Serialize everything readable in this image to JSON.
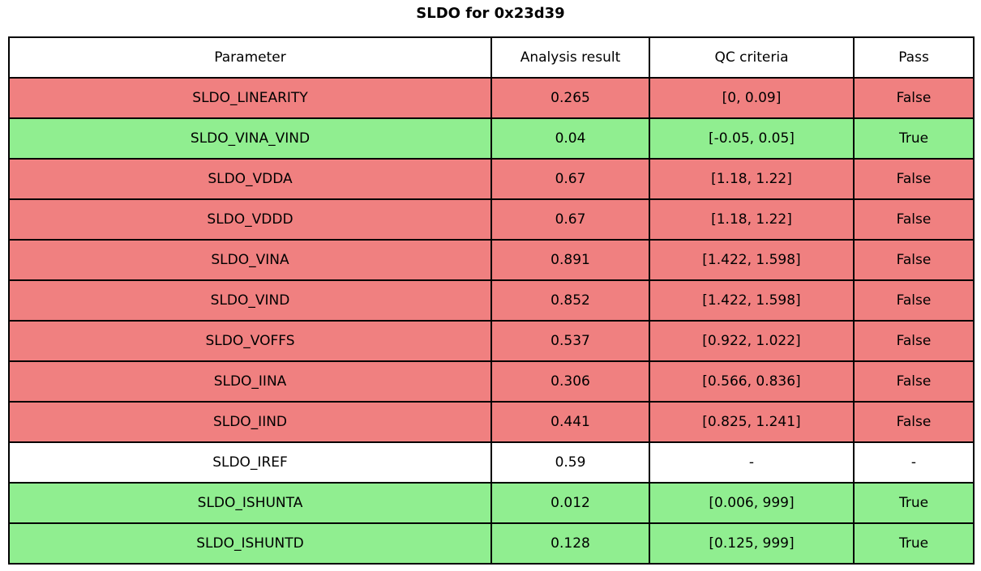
{
  "title": "SLDO for 0x23d39",
  "colors": {
    "fail": "#f08080",
    "pass": "#90ee90",
    "neutral": "#ffffff",
    "border": "#000000"
  },
  "table": {
    "headers": [
      "Parameter",
      "Analysis result",
      "QC criteria",
      "Pass"
    ],
    "rows": [
      {
        "parameter": "SLDO_LINEARITY",
        "result": "0.265",
        "criteria": "[0, 0.09]",
        "pass": "False",
        "status": "fail"
      },
      {
        "parameter": "SLDO_VINA_VIND",
        "result": "0.04",
        "criteria": "[-0.05, 0.05]",
        "pass": "True",
        "status": "pass"
      },
      {
        "parameter": "SLDO_VDDA",
        "result": "0.67",
        "criteria": "[1.18, 1.22]",
        "pass": "False",
        "status": "fail"
      },
      {
        "parameter": "SLDO_VDDD",
        "result": "0.67",
        "criteria": "[1.18, 1.22]",
        "pass": "False",
        "status": "fail"
      },
      {
        "parameter": "SLDO_VINA",
        "result": "0.891",
        "criteria": "[1.422, 1.598]",
        "pass": "False",
        "status": "fail"
      },
      {
        "parameter": "SLDO_VIND",
        "result": "0.852",
        "criteria": "[1.422, 1.598]",
        "pass": "False",
        "status": "fail"
      },
      {
        "parameter": "SLDO_VOFFS",
        "result": "0.537",
        "criteria": "[0.922, 1.022]",
        "pass": "False",
        "status": "fail"
      },
      {
        "parameter": "SLDO_IINA",
        "result": "0.306",
        "criteria": "[0.566, 0.836]",
        "pass": "False",
        "status": "fail"
      },
      {
        "parameter": "SLDO_IIND",
        "result": "0.441",
        "criteria": "[0.825, 1.241]",
        "pass": "False",
        "status": "fail"
      },
      {
        "parameter": "SLDO_IREF",
        "result": "0.59",
        "criteria": "-",
        "pass": "-",
        "status": "neutral"
      },
      {
        "parameter": "SLDO_ISHUNTA",
        "result": "0.012",
        "criteria": "[0.006, 999]",
        "pass": "True",
        "status": "pass"
      },
      {
        "parameter": "SLDO_ISHUNTD",
        "result": "0.128",
        "criteria": "[0.125, 999]",
        "pass": "True",
        "status": "pass"
      }
    ]
  }
}
